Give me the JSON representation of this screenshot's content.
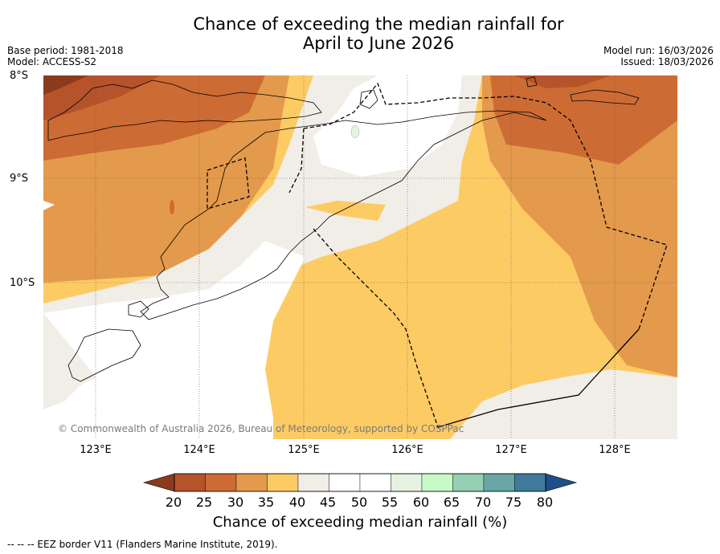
{
  "title_line1": "Chance of exceeding the median rainfall for",
  "title_line2": "April to June 2026",
  "base_period": "Base period: 1981-2018",
  "model": "Model: ACCESS-S2",
  "model_run": "Model run: 16/03/2026",
  "issued": "Issued: 18/03/2026",
  "lat_labels": [
    "8°S",
    "9°S",
    "10°S"
  ],
  "lon_labels": [
    "123°E",
    "124°E",
    "125°E",
    "126°E",
    "127°E",
    "128°E"
  ],
  "copyright": "© Commonwealth of Australia 2026, Bureau of Meteorology, supported by COSPPac",
  "colorbar": {
    "ticks": [
      "20",
      "25",
      "30",
      "35",
      "40",
      "45",
      "50",
      "55",
      "60",
      "65",
      "70",
      "75",
      "80"
    ],
    "colors": [
      "#8b3a1e",
      "#b5532a",
      "#cd6b35",
      "#e39a4c",
      "#fdcb64",
      "#f1ede7",
      "#ffffff",
      "#ffffff",
      "#e6f3e3",
      "#c8fac8",
      "#96cfb4",
      "#6aa6a6",
      "#3f7a9a",
      "#1f4f8a"
    ],
    "label": "Chance of exceeding median rainfall (%)"
  },
  "footnote": "--  --  -- EEZ border V11 (Flanders Marine Institute, 2019)."
}
